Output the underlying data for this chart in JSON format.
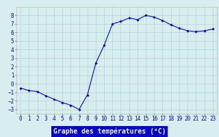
{
  "x": [
    0,
    1,
    2,
    3,
    4,
    5,
    6,
    7,
    8,
    9,
    10,
    11,
    12,
    13,
    14,
    15,
    16,
    17,
    18,
    19,
    20,
    21,
    22,
    23
  ],
  "y": [
    -0.5,
    -0.8,
    -0.9,
    -1.4,
    -1.8,
    -2.2,
    -2.5,
    -3.0,
    -1.3,
    2.4,
    4.5,
    7.0,
    7.3,
    7.7,
    7.5,
    8.0,
    7.8,
    7.4,
    6.9,
    6.5,
    6.2,
    6.1,
    6.2,
    6.4
  ],
  "line_color": "#0000cc",
  "marker": "D",
  "marker_size": 1.8,
  "line_width": 0.8,
  "xlabel": "Graphe des températures (°C)",
  "xlabel_fontsize": 7,
  "xlabel_color": "#ffffff",
  "xlabel_bg": "#0000cc",
  "ylim": [
    -3.5,
    9.0
  ],
  "xlim": [
    -0.5,
    23.5
  ],
  "yticks": [
    -3,
    -2,
    -1,
    0,
    1,
    2,
    3,
    4,
    5,
    6,
    7,
    8
  ],
  "xticks": [
    0,
    1,
    2,
    3,
    4,
    5,
    6,
    7,
    8,
    9,
    10,
    11,
    12,
    13,
    14,
    15,
    16,
    17,
    18,
    19,
    20,
    21,
    22,
    23
  ],
  "bg_color": "#d8eeee",
  "grid_color": "#aacccc",
  "tick_fontsize": 5.5,
  "tick_color": "#0000cc",
  "spine_color": "#aaaaaa"
}
